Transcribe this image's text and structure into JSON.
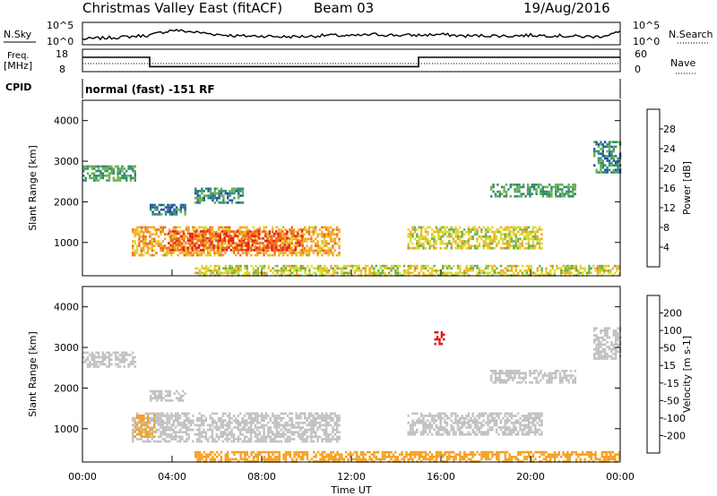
{
  "header": {
    "title": "Christmas Valley East (fitACF)",
    "beam": "Beam 03",
    "date": "19/Aug/2016"
  },
  "nsky_panel": {
    "label": "N.Sky",
    "right_label": "N.Search",
    "left_ticks": [
      "10^5",
      "10^0"
    ],
    "right_ticks": [
      "10^5",
      "10^0"
    ]
  },
  "freq_panel": {
    "label_line1": "Freq.",
    "label_line2": "[MHz]",
    "right_label": "Nave",
    "left_ticks": [
      "18",
      "8"
    ],
    "right_ticks": [
      "60",
      "0"
    ]
  },
  "cpid": {
    "label": "CPID",
    "text": "normal (fast) -151 RF"
  },
  "power_panel": {
    "ylabel": "Slant Range [km]",
    "yticks": [
      "4000",
      "3000",
      "2000",
      "1000"
    ],
    "colorbar_label": "Power [dB]",
    "colorbar_ticks": [
      "28",
      "24",
      "20",
      "16",
      "12",
      "8",
      "4"
    ],
    "colors": [
      "#1a1aff",
      "#1f4fa8",
      "#2e8b6e",
      "#6ab04c",
      "#d9d92a",
      "#f5a623",
      "#f06a1c",
      "#e82020"
    ]
  },
  "velocity_panel": {
    "ylabel": "Slant Range [km]",
    "yticks": [
      "4000",
      "3000",
      "2000",
      "1000"
    ],
    "colorbar_label": "Velocity [m s-1]",
    "colorbar_ticks": [
      "200",
      "100",
      "50",
      "15",
      "-15",
      "-50",
      "-100",
      "-200"
    ],
    "colors": [
      "#1f3fbf",
      "#2a7f7f",
      "#3c9a3c",
      "#7ad04a",
      "#c0c0c0",
      "#e6c040",
      "#f5a020",
      "#f07010",
      "#e81010"
    ]
  },
  "x_axis": {
    "ticks": [
      "00:00",
      "04:00",
      "08:00",
      "12:00",
      "16:00",
      "20:00",
      "00:00"
    ],
    "label": "Time UT"
  },
  "chart_data": [
    {
      "type": "line",
      "name": "nsky",
      "x_hours": [
        0,
        1,
        2,
        3,
        4,
        5,
        6,
        7,
        8,
        9,
        10,
        11,
        12,
        13,
        14,
        15,
        16,
        17,
        18,
        19,
        20,
        21,
        22,
        23,
        24
      ],
      "values_log": [
        1.2,
        1.5,
        1.8,
        2.2,
        3.5,
        3.0,
        2.4,
        2.0,
        2.0,
        1.8,
        1.9,
        2.2,
        2.0,
        2.4,
        2.2,
        2.2,
        2.4,
        2.0,
        2.1,
        2.0,
        2.2,
        2.1,
        1.9,
        1.8,
        3.0
      ]
    },
    {
      "type": "line",
      "name": "frequency",
      "x_hours": [
        0,
        3,
        3,
        15,
        15,
        24
      ],
      "values_mhz": [
        14.5,
        14.5,
        10.0,
        10.0,
        14.5,
        14.5
      ],
      "ylim": [
        8,
        18
      ]
    },
    {
      "type": "heatmap",
      "name": "power",
      "ylim": [
        180,
        4500
      ],
      "xlim_hours": [
        0,
        24
      ],
      "regions": [
        {
          "t0": 2.2,
          "t1": 11.5,
          "r0": 700,
          "r1": 1400,
          "val": 22
        },
        {
          "t0": 3.8,
          "t1": 9.8,
          "r0": 800,
          "r1": 1300,
          "val": 27
        },
        {
          "t0": 0,
          "t1": 2.4,
          "r0": 2500,
          "r1": 2900,
          "val": 12
        },
        {
          "t0": 3.0,
          "t1": 4.6,
          "r0": 1700,
          "r1": 1950,
          "val": 9
        },
        {
          "t0": 5.0,
          "t1": 7.2,
          "r0": 2000,
          "r1": 2350,
          "val": 10
        },
        {
          "t0": 14.5,
          "t1": 20.5,
          "r0": 850,
          "r1": 1400,
          "val": 18
        },
        {
          "t0": 18.2,
          "t1": 22.0,
          "r0": 2150,
          "r1": 2450,
          "val": 12
        },
        {
          "t0": 22.8,
          "t1": 24,
          "r0": 2700,
          "r1": 3500,
          "val": 10
        },
        {
          "t0": 5.0,
          "t1": 24,
          "r0": 190,
          "r1": 450,
          "val": 18
        }
      ]
    },
    {
      "type": "heatmap",
      "name": "velocity",
      "ylim": [
        180,
        4500
      ],
      "xlim_hours": [
        0,
        24
      ],
      "regions": [
        {
          "t0": 2.2,
          "t1": 11.5,
          "r0": 700,
          "r1": 1400,
          "val": 0
        },
        {
          "t0": 2.3,
          "t1": 3.2,
          "r0": 800,
          "r1": 1350,
          "val": -40
        },
        {
          "t0": 0,
          "t1": 2.4,
          "r0": 2500,
          "r1": 2900,
          "val": 0
        },
        {
          "t0": 3.0,
          "t1": 4.6,
          "r0": 1700,
          "r1": 1950,
          "val": 0
        },
        {
          "t0": 14.5,
          "t1": 20.5,
          "r0": 850,
          "r1": 1400,
          "val": 0
        },
        {
          "t0": 18.2,
          "t1": 22.0,
          "r0": 2150,
          "r1": 2450,
          "val": 0
        },
        {
          "t0": 22.8,
          "t1": 24,
          "r0": 2700,
          "r1": 3500,
          "val": 0
        },
        {
          "t0": 5.0,
          "t1": 24,
          "r0": 190,
          "r1": 450,
          "val": -60
        },
        {
          "t0": 15.7,
          "t1": 16.1,
          "r0": 3100,
          "r1": 3400,
          "val": -210
        }
      ]
    }
  ]
}
